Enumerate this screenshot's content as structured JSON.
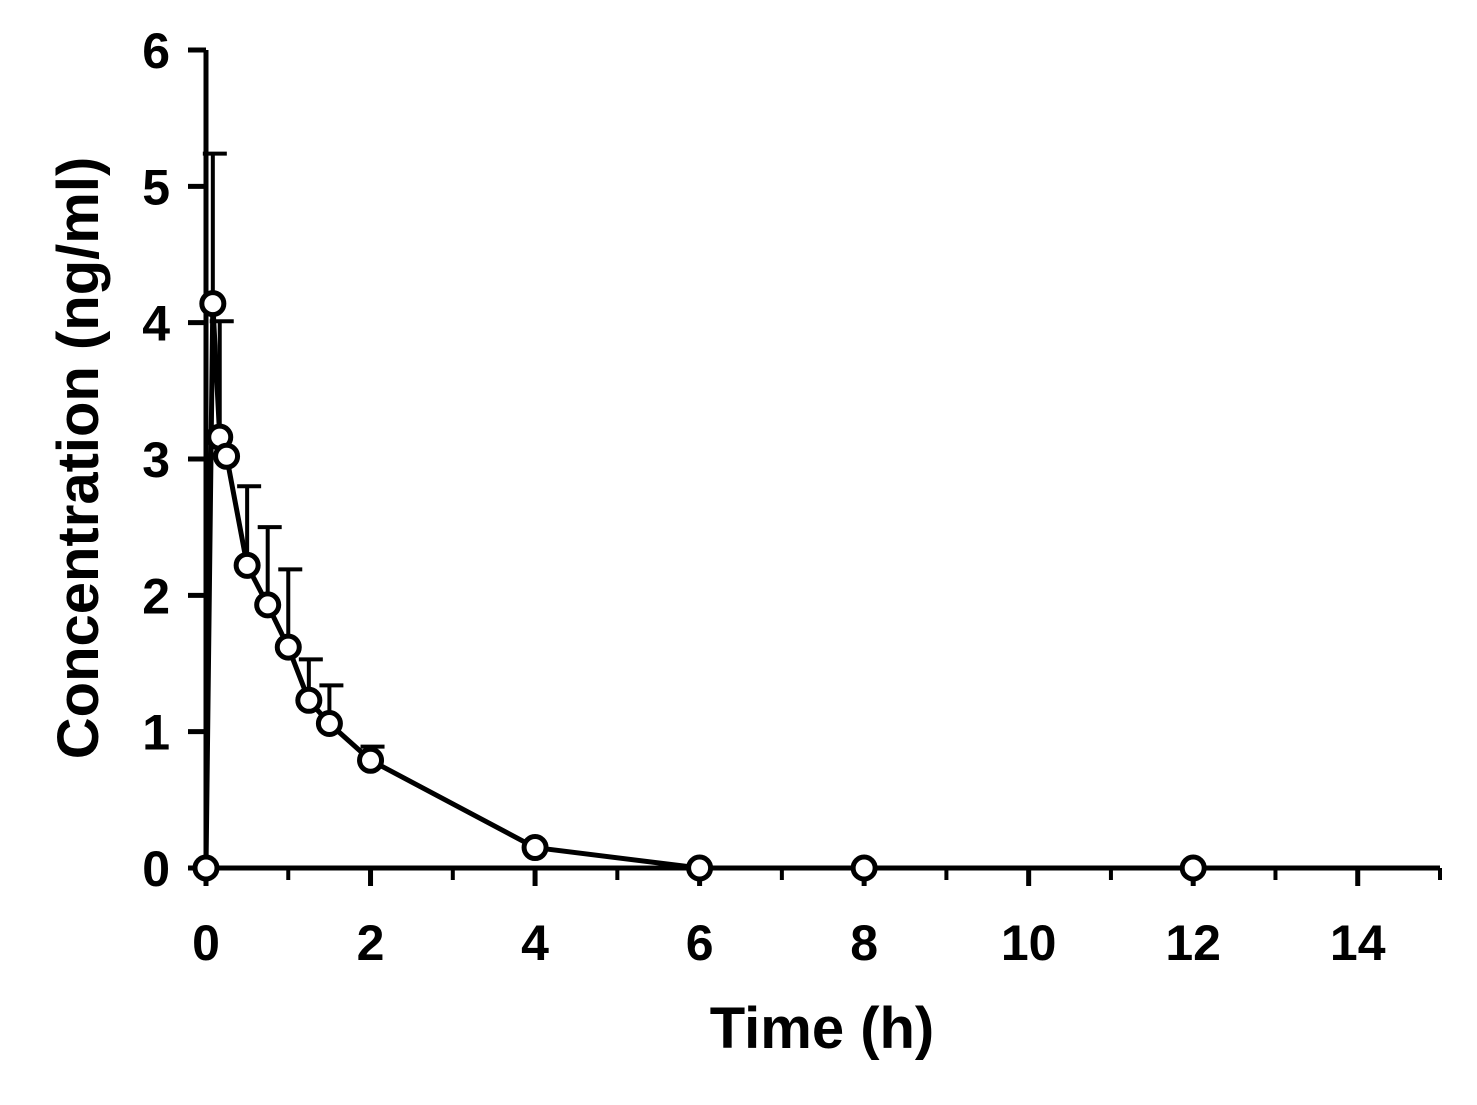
{
  "chart_data": {
    "type": "line",
    "title": "",
    "xlabel": "Time (h)",
    "ylabel": "Concentration (ng/ml)",
    "xlim": [
      0,
      15
    ],
    "ylim": [
      0,
      6
    ],
    "x_ticks": [
      0,
      2,
      4,
      6,
      8,
      10,
      12,
      14
    ],
    "y_ticks": [
      0,
      1,
      2,
      3,
      4,
      5,
      6
    ],
    "grid": false,
    "legend": "none",
    "marker": "open-circle",
    "error_bars": "upper",
    "series": [
      {
        "x": [
          0,
          0.083,
          0.167,
          0.25,
          0.5,
          0.75,
          1,
          1.25,
          1.5,
          2,
          4,
          6,
          8,
          12
        ],
        "y": [
          0,
          4.14,
          3.16,
          3.02,
          2.22,
          1.93,
          1.62,
          1.23,
          1.06,
          0.79,
          0.15,
          0,
          0,
          0
        ],
        "err": [
          0,
          1.1,
          0.85,
          0.0,
          0.58,
          0.57,
          0.57,
          0.3,
          0.28,
          0.1,
          0,
          0,
          0,
          0
        ]
      }
    ],
    "colors": {
      "line": "#000000",
      "marker_fill": "#ffffff",
      "background": "#ffffff"
    }
  }
}
